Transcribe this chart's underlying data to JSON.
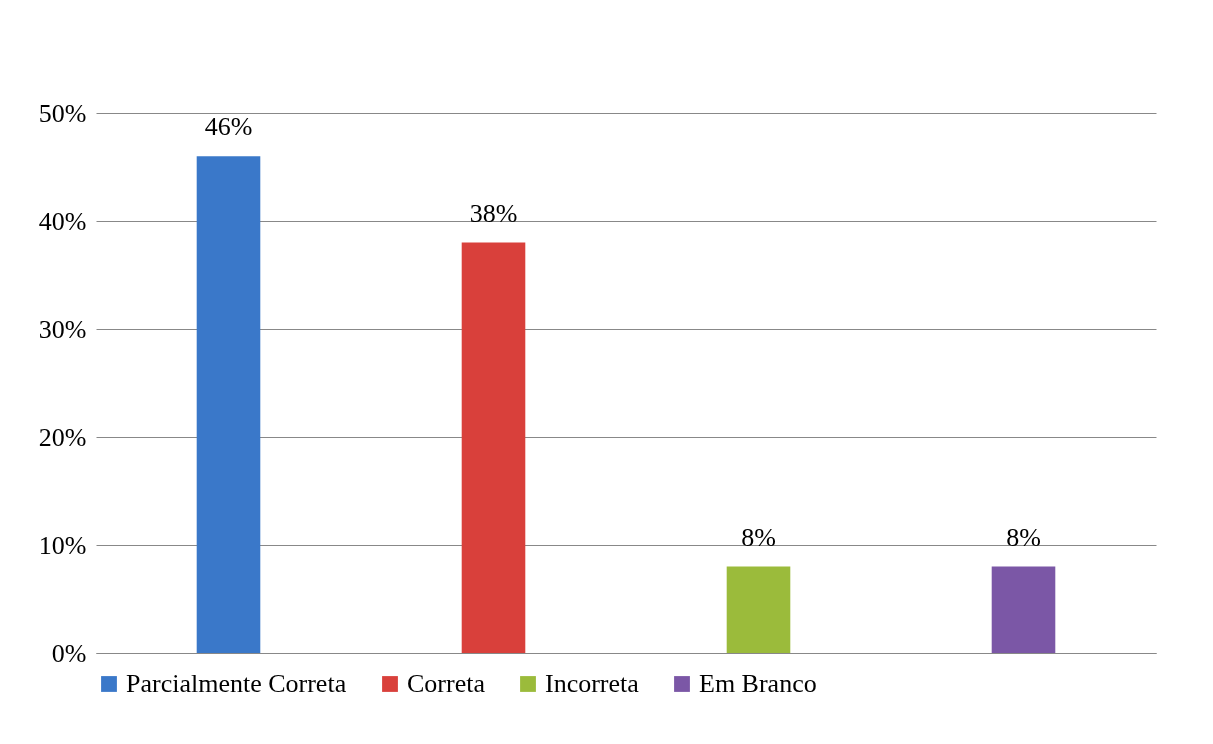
{
  "chart_data": {
    "type": "bar",
    "categories": [
      null
    ],
    "series": [
      {
        "name": "Parcialmente Correta",
        "color": "#3a78c9",
        "values": [
          46
        ],
        "value_labels": [
          "46%"
        ]
      },
      {
        "name": "Correta",
        "color": "#d9403b",
        "values": [
          38
        ],
        "value_labels": [
          "38%"
        ]
      },
      {
        "name": "Incorreta",
        "color": "#9bbb3b",
        "values": [
          8
        ],
        "value_labels": [
          "8%"
        ]
      },
      {
        "name": "Em Branco",
        "color": "#7b57a6",
        "values": [
          8
        ],
        "value_labels": [
          "8%"
        ]
      }
    ],
    "ylim": [
      0,
      50
    ],
    "yticks": [
      {
        "value": 0,
        "label": "0%"
      },
      {
        "value": 10,
        "label": "10%"
      },
      {
        "value": 20,
        "label": "20%"
      },
      {
        "value": 30,
        "label": "30%"
      },
      {
        "value": 40,
        "label": "40%"
      },
      {
        "value": 50,
        "label": "50%"
      }
    ],
    "grid": "y",
    "legend": "bottom"
  }
}
